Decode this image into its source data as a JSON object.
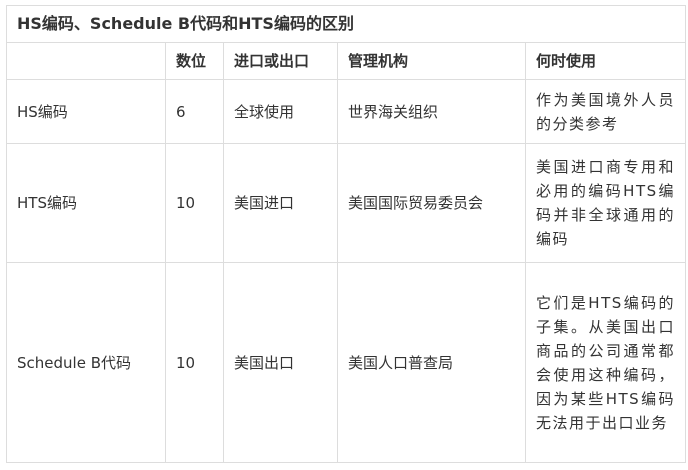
{
  "title": "HS编码、Schedule B代码和HTS编码的区别",
  "headers": [
    "",
    "数位",
    "进口或出口",
    "管理机构",
    "何时使用"
  ],
  "rows": [
    [
      "HS编码",
      "6",
      "全球使用",
      "世界海关组织",
      "作为美国境外人员的分类参考"
    ],
    [
      "HTS编码",
      "10",
      "美国进口",
      "美国国际贸易委员会",
      "美国进口商专用和必用的编码HTS编码并非全球通用的编码"
    ],
    [
      "Schedule B代码",
      "10",
      "美国出口",
      "美国人口普查局",
      "它们是HTS编码的子集。从美国出口商品的公司通常都会使用这种编码，因为某些HTS编码无法用于出口业务"
    ]
  ]
}
